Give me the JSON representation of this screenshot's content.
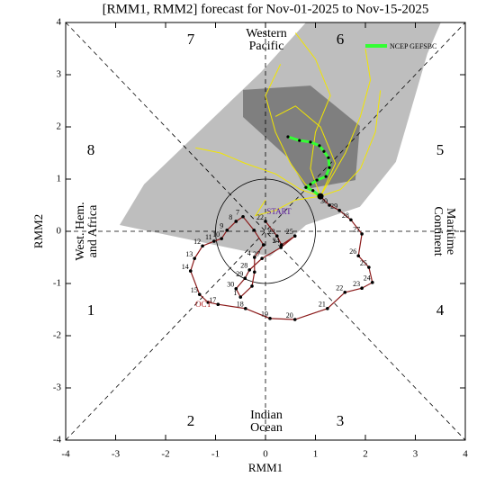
{
  "chart_data": {
    "type": "phase",
    "title": "[RMM1, RMM2] forecast for Nov-01-2025 to Nov-15-2025",
    "x_label": "RMM1",
    "y_label": "RMM2",
    "xlim": [
      -4,
      4
    ],
    "ylim": [
      -4,
      4
    ],
    "xticks": [
      -4,
      -3,
      -2,
      -1,
      0,
      1,
      2,
      3,
      4
    ],
    "yticks": [
      -4,
      -3,
      -2,
      -1,
      0,
      1,
      2,
      3,
      4
    ],
    "phase_labels": [
      "1",
      "2",
      "3",
      "4",
      "5",
      "6",
      "7",
      "8"
    ],
    "region_labels": {
      "top": [
        "Western",
        "Pacific"
      ],
      "bottom": [
        "Indian",
        "Ocean"
      ],
      "left": [
        "West. Hem.",
        "and Africa"
      ],
      "right": [
        "Maritime",
        "Continent"
      ]
    },
    "annotations": {
      "start": "START",
      "month": "OCT"
    },
    "legend": "upper right",
    "spread_90": {
      "color": "#bebebe",
      "x": [
        -2.92,
        -2.43,
        -0.09,
        0.81,
        3.51,
        3.24,
        2.61,
        1.89,
        0.81,
        0.09
      ],
      "y": [
        0.12,
        0.9,
        3.05,
        4.0,
        4.0,
        3.4,
        1.33,
        0.47,
        0.12,
        -0.48
      ]
    },
    "spread_50": {
      "color": "#7f7f7f",
      "x": [
        -0.45,
        0.9,
        1.89,
        1.8,
        0.81,
        0.45,
        -0.45
      ],
      "y": [
        2.71,
        2.79,
        2.02,
        0.98,
        0.81,
        1.41,
        2.19
      ]
    },
    "member_color": "#f2e600",
    "members": [
      {
        "x": [
          1.1,
          0.8,
          0.5,
          0.2,
          0.0,
          0.3
        ],
        "y": [
          0.67,
          0.9,
          1.3,
          1.9,
          2.6,
          3.2
        ]
      },
      {
        "x": [
          1.1,
          1.3,
          1.6,
          1.9,
          2.1,
          2.0
        ],
        "y": [
          0.67,
          1.0,
          1.5,
          2.2,
          2.9,
          3.5
        ]
      },
      {
        "x": [
          1.1,
          0.7,
          0.2,
          -0.4,
          -0.9,
          -1.4
        ],
        "y": [
          0.67,
          0.8,
          1.1,
          1.3,
          1.5,
          1.6
        ]
      },
      {
        "x": [
          1.1,
          1.5,
          1.9,
          2.2,
          2.3
        ],
        "y": [
          0.67,
          0.8,
          1.2,
          1.9,
          2.7
        ]
      },
      {
        "x": [
          1.1,
          0.9,
          1.0,
          1.3,
          1.0,
          0.6
        ],
        "y": [
          0.67,
          1.2,
          1.9,
          2.6,
          3.3,
          3.8
        ]
      },
      {
        "x": [
          1.1,
          0.6,
          0.2,
          -0.2,
          0.0
        ],
        "y": [
          0.67,
          0.6,
          0.4,
          0.3,
          0.6
        ]
      },
      {
        "x": [
          1.1,
          1.4,
          1.1,
          0.6,
          0.2
        ],
        "y": [
          0.67,
          1.3,
          2.0,
          2.4,
          2.2
        ]
      }
    ],
    "series": [
      {
        "color": "#8b1a1a",
        "x": [
          0.0,
          0.23,
          0.32,
          0.59,
          0.31,
          -0.07,
          -0.32,
          -0.41,
          -0.59,
          -0.5,
          -0.27,
          -0.22,
          -0.22,
          -0.04,
          -0.23,
          -0.45,
          -0.59,
          -0.77,
          -0.88,
          -1.03,
          -1.26,
          -1.42,
          -1.5,
          -1.32,
          -1.15,
          -0.95,
          -0.4,
          0.09,
          0.59,
          1.24,
          1.59,
          1.93,
          2.14,
          2.07,
          1.86,
          1.93,
          1.71,
          1.48,
          1.28,
          1.1
        ],
        "y": [
          0.19,
          -0.09,
          -0.26,
          -0.09,
          -0.31,
          -0.52,
          -0.74,
          -0.9,
          -1.1,
          -1.26,
          -1.05,
          -0.78,
          -0.5,
          -0.26,
          0.02,
          0.28,
          0.19,
          0.02,
          -0.14,
          -0.19,
          -0.28,
          -0.52,
          -0.76,
          -1.21,
          -1.36,
          -1.4,
          -1.48,
          -1.67,
          -1.69,
          -1.48,
          -1.17,
          -1.09,
          -0.98,
          -0.69,
          -0.47,
          -0.05,
          0.22,
          0.4,
          0.5,
          0.67
        ],
        "labels": [
          "22",
          "23",
          "24",
          "25",
          null,
          "27",
          "28",
          "29",
          "30",
          "1",
          null,
          null,
          "4",
          null,
          null,
          "7",
          "8",
          "9",
          "10",
          "11",
          "12",
          "13",
          "14",
          "15",
          null,
          "17",
          "18",
          "19",
          "20",
          "21",
          "22",
          "23",
          "24",
          "25",
          "26",
          "27",
          "28",
          "29",
          "30",
          null
        ]
      },
      {
        "name": "NCEP GEFSBC",
        "color": "#33ff33",
        "x": [
          1.1,
          0.95,
          0.81,
          0.9,
          1.03,
          1.21,
          1.28,
          1.26,
          1.17,
          1.08,
          0.9,
          0.68,
          0.45
        ],
        "y": [
          0.67,
          0.78,
          0.84,
          0.9,
          0.98,
          1.05,
          1.22,
          1.41,
          1.53,
          1.64,
          1.71,
          1.74,
          1.81
        ]
      }
    ]
  }
}
